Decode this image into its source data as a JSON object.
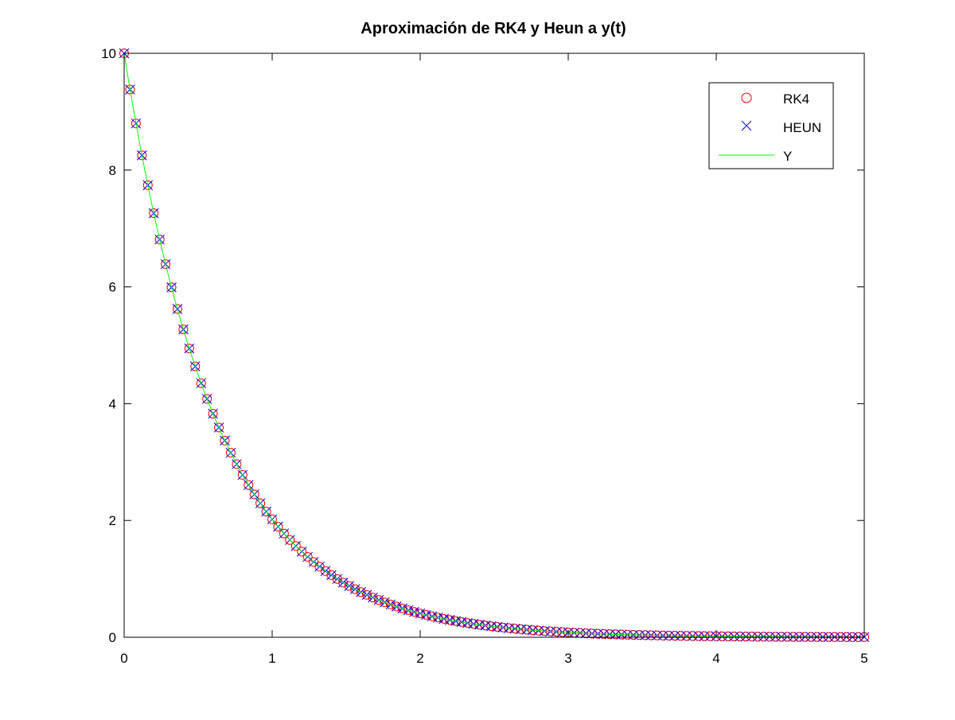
{
  "chart_data": {
    "type": "line",
    "title": "Aproximación de RK4 y Heun a y(t)",
    "xlabel": "",
    "ylabel": "",
    "xlim": [
      0,
      5
    ],
    "ylim": [
      0,
      10
    ],
    "x_ticks": [
      0,
      1,
      2,
      3,
      4,
      5
    ],
    "y_ticks": [
      0,
      2,
      4,
      6,
      8,
      10
    ],
    "x_tick_labels": [
      "0",
      "1",
      "2",
      "3",
      "4",
      "5"
    ],
    "y_tick_labels": [
      "0",
      "2",
      "4",
      "6",
      "8",
      "10"
    ],
    "grid": false,
    "legend_position": "top-right",
    "x": {
      "start": 0,
      "step": 0.04,
      "end": 5
    },
    "function": "y(t) = 10·e^(-1.6·t)",
    "sample_points": [
      {
        "x": 0,
        "y": 10.0
      },
      {
        "x": 0.5,
        "y": 4.49
      },
      {
        "x": 1,
        "y": 2.02
      },
      {
        "x": 1.5,
        "y": 0.91
      },
      {
        "x": 2,
        "y": 0.41
      },
      {
        "x": 3,
        "y": 0.08
      },
      {
        "x": 4,
        "y": 0.02
      },
      {
        "x": 5,
        "y": 0.003
      }
    ],
    "series": [
      {
        "name": "RK4",
        "style": "markers",
        "marker": "circle",
        "color": "#ff0000"
      },
      {
        "name": "HEUN",
        "style": "markers",
        "marker": "x",
        "color": "#0000ff"
      },
      {
        "name": "Y",
        "style": "line",
        "marker": "none",
        "color": "#00ff00"
      }
    ]
  }
}
